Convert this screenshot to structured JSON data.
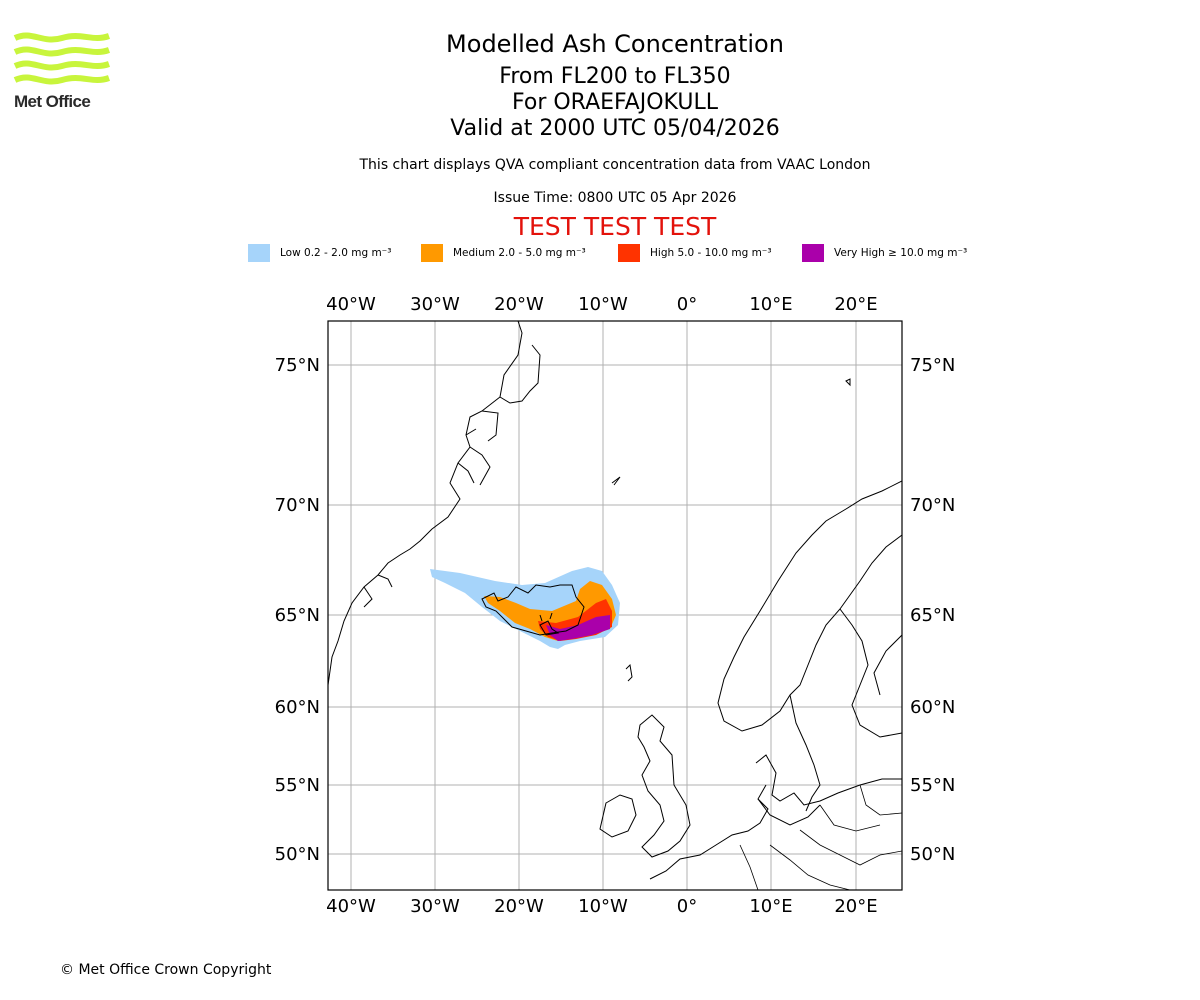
{
  "branding": {
    "logo_text": "Met Office",
    "logo_color": "#c8f53c"
  },
  "header": {
    "title": "Modelled Ash Concentration",
    "levels": "From FL200 to FL350",
    "volcano": "For ORAEFAJOKULL",
    "valid": "Valid at 2000 UTC 05/04/2026",
    "description": "This chart displays QVA compliant concentration data from VAAC London",
    "issue_time": "Issue Time: 0800 UTC 05 Apr 2026",
    "test_banner": "TEST TEST TEST",
    "test_color": "#e3120b"
  },
  "legend": [
    {
      "label": "Low 0.2 - 2.0 mg m⁻³",
      "color": "#a6d4fa"
    },
    {
      "label": "Medium 2.0 - 5.0 mg m⁻³",
      "color": "#ff9900"
    },
    {
      "label": "High 5.0 - 10.0 mg m⁻³",
      "color": "#ff3300"
    },
    {
      "label": "Very High  ≥  10.0 mg m⁻³",
      "color": "#aa00aa"
    }
  ],
  "map": {
    "longitude_labels": [
      "40°W",
      "30°W",
      "20°W",
      "10°W",
      "0°",
      "10°E",
      "20°E"
    ],
    "latitude_labels": [
      "75°N",
      "70°N",
      "65°N",
      "60°N",
      "55°N",
      "50°N"
    ],
    "gridlines": true
  },
  "footer": {
    "copyright": "© Met Office Crown Copyright"
  }
}
